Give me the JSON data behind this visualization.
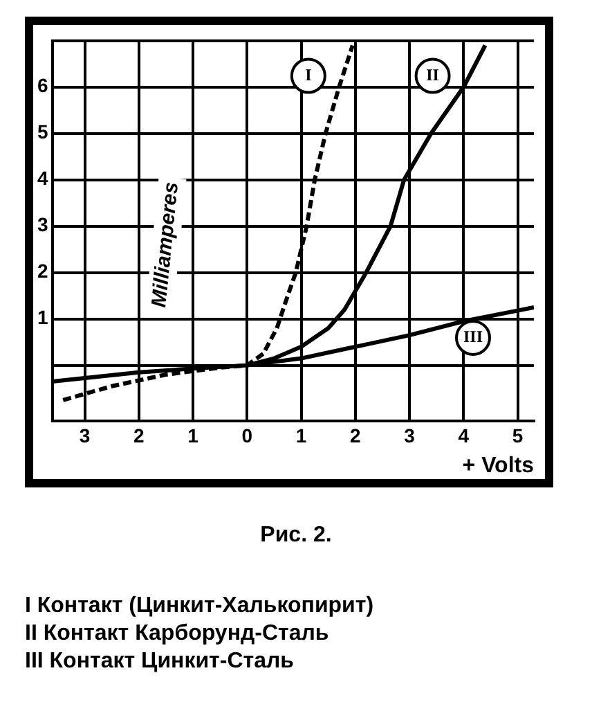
{
  "chart_data": {
    "type": "line",
    "ylabel": "Milliamperes",
    "xlabel": "+ Volts",
    "grid": true,
    "marker": "none",
    "xlim": [
      -3.6,
      5.3
    ],
    "ylim": [
      -1.2,
      7
    ],
    "xticks": [
      {
        "value": -3,
        "label": "3"
      },
      {
        "value": -2,
        "label": "2"
      },
      {
        "value": -1,
        "label": "1"
      },
      0,
      1,
      2,
      3,
      4,
      5
    ],
    "yticks": [
      {
        "value": 0,
        "label": null
      },
      1,
      2,
      3,
      4,
      5,
      6,
      {
        "value": 7,
        "label": null
      }
    ],
    "series": [
      {
        "name": "I",
        "color": "#000000",
        "line_style": "dashed",
        "x": [
          -3.4,
          -2.5,
          -1.5,
          -0.5,
          0,
          0.3,
          0.55,
          0.75,
          0.9,
          1.1,
          1.25,
          1.45,
          1.7,
          1.95
        ],
        "values": [
          -0.75,
          -0.45,
          -0.2,
          -0.05,
          0,
          0.25,
          0.8,
          1.5,
          2,
          3,
          4,
          5,
          6,
          6.9
        ]
      },
      {
        "name": "II",
        "color": "#000000",
        "line_style": "solid",
        "x": [
          -3.6,
          -2,
          -1,
          0,
          0.5,
          1,
          1.5,
          1.8,
          2.2,
          2.65,
          2.9,
          3.4,
          4,
          4.4
        ],
        "values": [
          -0.35,
          -0.15,
          -0.07,
          0,
          0.15,
          0.4,
          0.8,
          1.2,
          2,
          3,
          4,
          5,
          6,
          6.9
        ]
      },
      {
        "name": "III",
        "color": "#000000",
        "line_style": "solid",
        "x": [
          0,
          1,
          2,
          3,
          4,
          5.3
        ],
        "values": [
          0,
          0.15,
          0.4,
          0.65,
          0.95,
          1.25
        ]
      }
    ],
    "annotations": [
      "Рис. 2.",
      "I Контакт (Цинкит-Халькопирит)",
      "II Контакт Карборунд-Сталь",
      "III Контакт Цинкит-Сталь"
    ]
  }
}
